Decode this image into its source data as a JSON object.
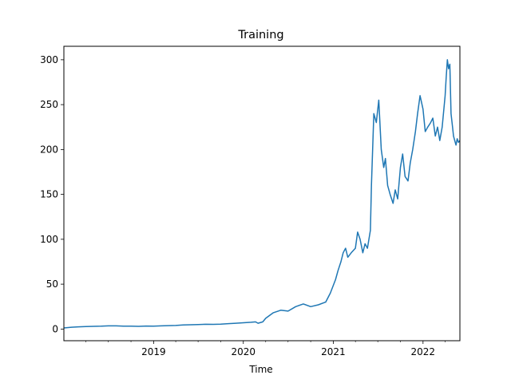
{
  "chart_data": {
    "type": "line",
    "title": "Training",
    "xlabel": "Time",
    "ylabel": "",
    "x_range": [
      "2018-01-01",
      "2022-05-31"
    ],
    "ylim": [
      -13,
      315
    ],
    "x_ticks": [
      "2019",
      "2020",
      "2021",
      "2022"
    ],
    "x_tick_dates": [
      "2019-01-01",
      "2020-01-01",
      "2021-01-01",
      "2022-01-01"
    ],
    "y_ticks": [
      0,
      50,
      100,
      150,
      200,
      250,
      300
    ],
    "grid": false,
    "legend": "none",
    "color": "#1f77b4",
    "series": [
      {
        "x": [
          "2018-01-01",
          "2018-02-01",
          "2018-03-01",
          "2018-04-01",
          "2018-05-01",
          "2018-06-01",
          "2018-07-01",
          "2018-08-01",
          "2018-09-01",
          "2018-10-01",
          "2018-11-01",
          "2018-12-01",
          "2019-01-01",
          "2019-02-01",
          "2019-03-01",
          "2019-04-01",
          "2019-05-01",
          "2019-06-01",
          "2019-07-01",
          "2019-08-01",
          "2019-09-01",
          "2019-10-01",
          "2019-11-01",
          "2019-12-01",
          "2020-01-01",
          "2020-02-01",
          "2020-02-20",
          "2020-03-01",
          "2020-03-20",
          "2020-04-01",
          "2020-05-01",
          "2020-06-01",
          "2020-07-01",
          "2020-08-01",
          "2020-09-01",
          "2020-10-01",
          "2020-11-01",
          "2020-12-01",
          "2020-12-20",
          "2021-01-10",
          "2021-01-20",
          "2021-02-01",
          "2021-02-10",
          "2021-02-20",
          "2021-03-01",
          "2021-03-15",
          "2021-04-01",
          "2021-04-10",
          "2021-04-20",
          "2021-05-01",
          "2021-05-10",
          "2021-05-20",
          "2021-06-01",
          "2021-06-05",
          "2021-06-15",
          "2021-06-25",
          "2021-07-05",
          "2021-07-15",
          "2021-07-25",
          "2021-08-01",
          "2021-08-10",
          "2021-08-20",
          "2021-09-01",
          "2021-09-10",
          "2021-09-20",
          "2021-10-01",
          "2021-10-10",
          "2021-10-20",
          "2021-11-01",
          "2021-11-10",
          "2021-11-20",
          "2021-12-01",
          "2021-12-10",
          "2021-12-20",
          "2022-01-01",
          "2022-01-10",
          "2022-01-20",
          "2022-02-01",
          "2022-02-10",
          "2022-02-20",
          "2022-03-01",
          "2022-03-10",
          "2022-03-20",
          "2022-04-01",
          "2022-04-05",
          "2022-04-10",
          "2022-04-15",
          "2022-04-20",
          "2022-04-25",
          "2022-05-01",
          "2022-05-05",
          "2022-05-10",
          "2022-05-15",
          "2022-05-20",
          "2022-05-25",
          "2022-05-31"
        ],
        "y": [
          1.2,
          2,
          2.5,
          2.8,
          3,
          3.2,
          3.5,
          3.5,
          3.2,
          3.3,
          3,
          3.4,
          3.3,
          3.5,
          3.8,
          4,
          4.5,
          4.8,
          5,
          5.3,
          5.2,
          5.5,
          6,
          6.5,
          7,
          7.5,
          8,
          6.5,
          8,
          12,
          18,
          21,
          20,
          25,
          28,
          25,
          27,
          30,
          40,
          55,
          65,
          75,
          85,
          90,
          80,
          85,
          90,
          108,
          100,
          85,
          95,
          90,
          110,
          160,
          240,
          230,
          255,
          200,
          180,
          190,
          160,
          150,
          140,
          155,
          145,
          180,
          195,
          170,
          165,
          185,
          200,
          220,
          240,
          260,
          245,
          220,
          225,
          230,
          235,
          215,
          225,
          210,
          225,
          260,
          280,
          300,
          290,
          295,
          240,
          225,
          215,
          210,
          205,
          212,
          208,
          210
        ]
      }
    ]
  }
}
